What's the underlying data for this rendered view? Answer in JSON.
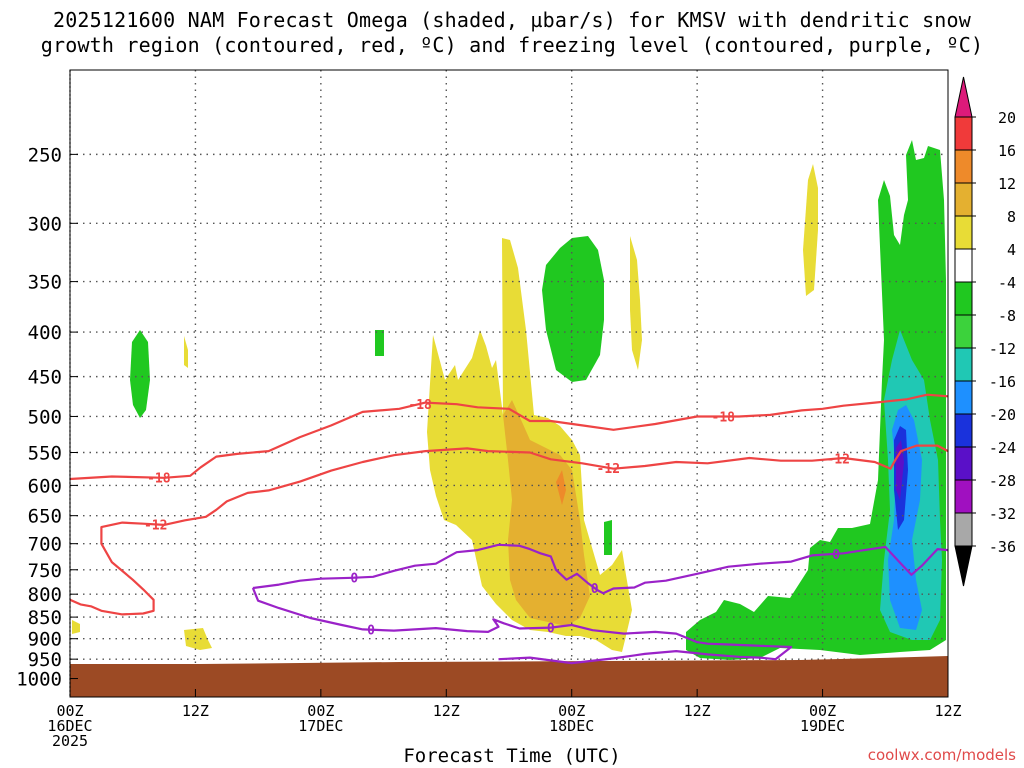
{
  "title": {
    "line1": "2025121600 NAM Forecast Omega (shaded, µbar/s) for KMSV with dendritic snow",
    "line2": "growth region (contoured, red, ºC) and freezing level (contoured, purple, ºC)"
  },
  "credit": "coolwx.com/models",
  "colors": {
    "dgz": "#ee4444",
    "freezing": "#9a22c8",
    "ground": "#9c4a24",
    "grid": "#555555"
  },
  "chart_data": {
    "type": "heatmap",
    "title": "2025121600 NAM Forecast Omega (shaded, µbar/s) for KMSV with dendritic snow growth region (contoured, red, ºC) and freezing level (contoured, purple, ºC)",
    "xlabel": "Forecast Time (UTC)",
    "ylabel": "",
    "xlim_hours": [
      0,
      84
    ],
    "ylim_hPa": [
      1050,
      200
    ],
    "y_ticks": [
      250,
      300,
      350,
      400,
      450,
      500,
      550,
      600,
      650,
      700,
      750,
      800,
      850,
      900,
      950,
      1000
    ],
    "x_ticks": [
      {
        "hour": 0,
        "labels": [
          "00Z",
          "16DEC",
          "2025"
        ]
      },
      {
        "hour": 12,
        "labels": [
          "12Z"
        ]
      },
      {
        "hour": 24,
        "labels": [
          "00Z",
          "17DEC"
        ]
      },
      {
        "hour": 36,
        "labels": [
          "12Z"
        ]
      },
      {
        "hour": 48,
        "labels": [
          "00Z",
          "18DEC"
        ]
      },
      {
        "hour": 60,
        "labels": [
          "12Z"
        ]
      },
      {
        "hour": 72,
        "labels": [
          "00Z",
          "19DEC"
        ]
      },
      {
        "hour": 84,
        "labels": [
          "12Z"
        ]
      }
    ],
    "colorbar": {
      "labels": [
        "20",
        "16",
        "12",
        "8",
        "4",
        "-4",
        "-8",
        "-12",
        "-16",
        "-20",
        "-24",
        "-28",
        "-32",
        "-36"
      ],
      "bins": [
        {
          "color": "#dd1a7a"
        },
        {
          "color": "#f03a3a"
        },
        {
          "color": "#ee8a2a"
        },
        {
          "color": "#e4b030"
        },
        {
          "color": "#e8dc36"
        },
        {
          "color": "#ffffff"
        },
        {
          "color": "#20c820"
        },
        {
          "color": "#3cd23c"
        },
        {
          "color": "#20c8b4"
        },
        {
          "color": "#1e90ff"
        },
        {
          "color": "#1a32dc"
        },
        {
          "color": "#5a10c8"
        },
        {
          "color": "#a010c0"
        },
        {
          "color": "#a8a8a8"
        },
        {
          "color": "#000000"
        }
      ]
    },
    "contours": {
      "dgz_minus18": {
        "level": "-18",
        "label_hours": [
          8.5,
          33.5,
          62.5
        ],
        "points": [
          [
            0,
            590
          ],
          [
            4,
            586
          ],
          [
            9,
            588
          ],
          [
            11.5,
            585
          ],
          [
            12.5,
            572
          ],
          [
            14,
            556
          ],
          [
            16,
            552
          ],
          [
            19,
            548
          ],
          [
            22,
            528
          ],
          [
            25,
            512
          ],
          [
            28,
            494
          ],
          [
            31.5,
            490
          ],
          [
            34,
            482
          ],
          [
            37,
            484
          ],
          [
            39,
            488
          ],
          [
            42,
            490
          ],
          [
            44,
            506
          ],
          [
            46,
            506
          ],
          [
            49,
            512
          ],
          [
            52,
            518
          ],
          [
            56,
            510
          ],
          [
            60,
            500
          ],
          [
            64,
            500
          ],
          [
            67,
            498
          ],
          [
            70,
            492
          ],
          [
            72,
            490
          ],
          [
            74,
            486
          ],
          [
            77,
            482
          ],
          [
            80,
            478
          ],
          [
            82,
            472
          ],
          [
            84,
            474
          ]
        ]
      },
      "dgz_minus12": {
        "level": "-12",
        "label_hours": [
          8.2,
          51.5,
          73.5
        ],
        "points": [
          [
            0,
            812
          ],
          [
            1,
            822
          ],
          [
            2,
            826
          ],
          [
            3,
            836
          ],
          [
            5,
            844
          ],
          [
            7,
            842
          ],
          [
            8,
            836
          ],
          [
            8,
            812
          ],
          [
            7,
            790
          ],
          [
            6,
            770
          ],
          [
            4,
            735
          ],
          [
            3,
            700
          ],
          [
            3,
            670
          ],
          [
            5,
            662
          ],
          [
            7,
            664
          ],
          [
            9,
            666
          ],
          [
            11,
            658
          ],
          [
            13,
            652
          ],
          [
            14,
            640
          ],
          [
            15,
            626
          ],
          [
            17,
            612
          ],
          [
            19,
            608
          ],
          [
            22,
            594
          ],
          [
            25,
            577
          ],
          [
            28,
            564
          ],
          [
            31,
            554
          ],
          [
            34,
            548
          ],
          [
            38,
            544
          ],
          [
            40,
            548
          ],
          [
            44,
            550
          ],
          [
            46,
            560
          ],
          [
            49,
            566
          ],
          [
            52,
            574
          ],
          [
            55,
            570
          ],
          [
            58,
            564
          ],
          [
            61,
            566
          ],
          [
            65,
            558
          ],
          [
            68,
            562
          ],
          [
            71,
            562
          ],
          [
            74,
            558
          ],
          [
            77,
            564
          ],
          [
            78.5,
            574
          ],
          [
            79,
            560
          ],
          [
            79.5,
            548
          ],
          [
            81,
            540
          ],
          [
            83,
            540
          ],
          [
            84,
            548
          ]
        ]
      },
      "freezing_main": {
        "level": "0",
        "label_hours": [
          27.2,
          50.2,
          73.3
        ],
        "points": [
          [
            17.5,
            787
          ],
          [
            20,
            780
          ],
          [
            22,
            772
          ],
          [
            24,
            768
          ],
          [
            27,
            766
          ],
          [
            29,
            764
          ],
          [
            31,
            752
          ],
          [
            33,
            742
          ],
          [
            35,
            738
          ],
          [
            37,
            716
          ],
          [
            39,
            712
          ],
          [
            41,
            702
          ],
          [
            43,
            704
          ],
          [
            44,
            710
          ],
          [
            45,
            718
          ],
          [
            46,
            724
          ],
          [
            46.5,
            750
          ],
          [
            47.5,
            770
          ],
          [
            48.5,
            758
          ],
          [
            49.5,
            776
          ],
          [
            50.5,
            792
          ],
          [
            51,
            798
          ],
          [
            52,
            788
          ],
          [
            54,
            786
          ],
          [
            55,
            776
          ],
          [
            57,
            772
          ],
          [
            60,
            758
          ],
          [
            63,
            744
          ],
          [
            66,
            738
          ],
          [
            69,
            734
          ],
          [
            71,
            722
          ],
          [
            74,
            718
          ],
          [
            76,
            712
          ],
          [
            78,
            706
          ],
          [
            79.5,
            738
          ],
          [
            80.5,
            760
          ],
          [
            81.5,
            742
          ],
          [
            83,
            710
          ],
          [
            84,
            712
          ]
        ]
      },
      "freezing_lower": {
        "level": "0",
        "label_hours": [
          28.8,
          46.0
        ],
        "points": [
          [
            17.5,
            787
          ],
          [
            18,
            814
          ],
          [
            20,
            830
          ],
          [
            23,
            852
          ],
          [
            26,
            868
          ],
          [
            28,
            878
          ],
          [
            31,
            881
          ],
          [
            35,
            875
          ],
          [
            38,
            882
          ],
          [
            40,
            884
          ],
          [
            41,
            872
          ],
          [
            40.5,
            855
          ],
          [
            41.5,
            864
          ],
          [
            43,
            876
          ],
          [
            46,
            874
          ],
          [
            48,
            868
          ],
          [
            50,
            880
          ],
          [
            53,
            888
          ],
          [
            56,
            884
          ],
          [
            58,
            888
          ],
          [
            60,
            908
          ],
          [
            61,
            912
          ],
          [
            63,
            914
          ],
          [
            65,
            916
          ],
          [
            67,
            918
          ],
          [
            69,
            920
          ],
          [
            67.5,
            950
          ],
          [
            66,
            946
          ],
          [
            64,
            944
          ],
          [
            61,
            938
          ],
          [
            58,
            930
          ],
          [
            55,
            937
          ],
          [
            52,
            948
          ],
          [
            48,
            960
          ],
          [
            44,
            946
          ],
          [
            41,
            950
          ]
        ]
      }
    }
  }
}
